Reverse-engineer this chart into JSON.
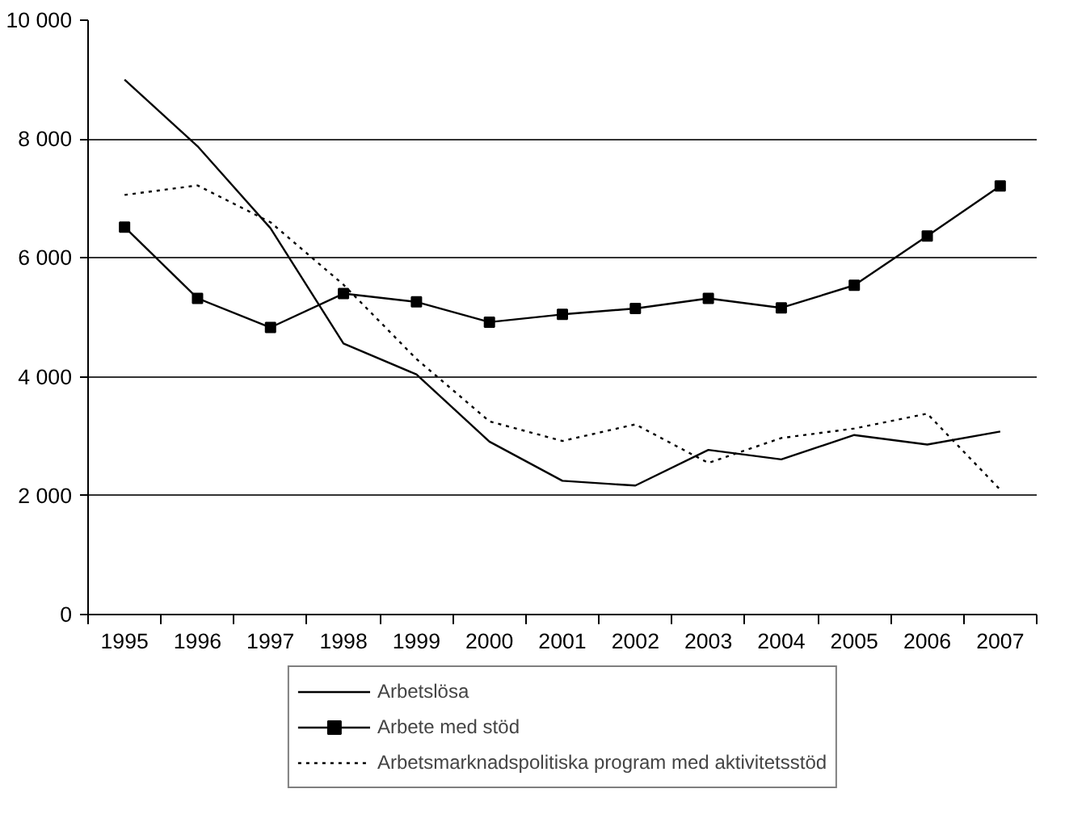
{
  "chart_data": {
    "type": "line",
    "categories": [
      "1995",
      "1996",
      "1997",
      "1998",
      "1999",
      "2000",
      "2001",
      "2002",
      "2003",
      "2004",
      "2005",
      "2006",
      "2007"
    ],
    "series": [
      {
        "name": "Arbetslösa",
        "color": "#000000",
        "line_style": "solid",
        "marker": "none",
        "values": [
          9000,
          7880,
          6500,
          4560,
          4040,
          2910,
          2250,
          2170,
          2770,
          2610,
          3020,
          2860,
          3080
        ]
      },
      {
        "name": "Arbete med stöd",
        "color": "#000000",
        "line_style": "solid",
        "marker": "square",
        "values": [
          6520,
          5320,
          4830,
          5400,
          5260,
          4920,
          5050,
          5150,
          5320,
          5160,
          5540,
          6370,
          7210
        ]
      },
      {
        "name": "Arbetsmarknadspolitiska program med aktivitetsstöd",
        "color": "#000000",
        "line_style": "dotted",
        "marker": "none",
        "values": [
          7060,
          7220,
          6600,
          5550,
          4300,
          3250,
          2920,
          3200,
          2550,
          2970,
          3130,
          3380,
          2100
        ]
      }
    ],
    "ylim": [
      0,
      10000
    ],
    "yticks": [
      {
        "value": 0,
        "label": "0"
      },
      {
        "value": 2000,
        "label": "2 000"
      },
      {
        "value": 4000,
        "label": "4 000"
      },
      {
        "value": 6000,
        "label": "6 000"
      },
      {
        "value": 8000,
        "label": "8 000"
      },
      {
        "value": 10000,
        "label": "10 000"
      }
    ],
    "grid": "y",
    "legend": "bottom"
  }
}
